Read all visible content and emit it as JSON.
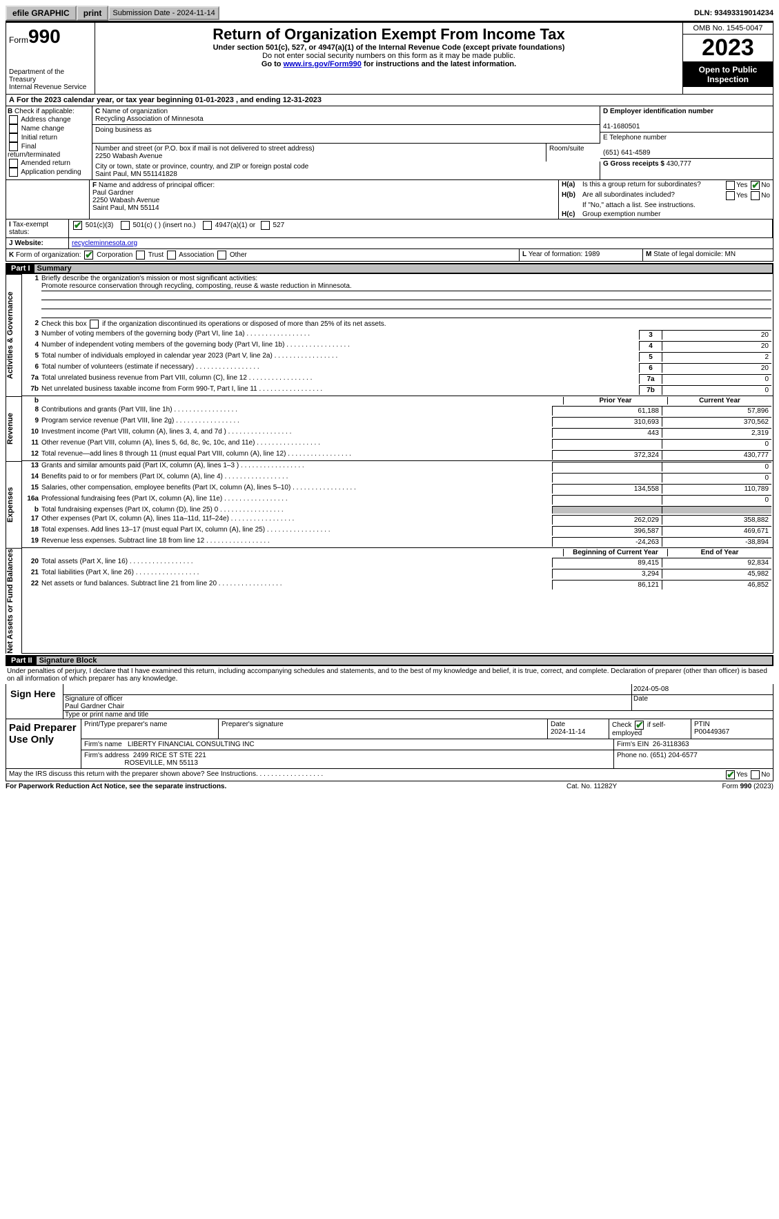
{
  "header": {
    "efile": "efile GRAPHIC print",
    "efile_btn": "efile GRAPHIC",
    "print_btn": "print",
    "submission_label": "Submission Date - 2024-11-14",
    "dln": "DLN: 93493319014234"
  },
  "formhdr": {
    "form_word": "Form",
    "form_no": "990",
    "dept": "Department of the Treasury",
    "irs": "Internal Revenue Service",
    "title": "Return of Organization Exempt From Income Tax",
    "sub": "Under section 501(c), 527, or 4947(a)(1) of the Internal Revenue Code (except private foundations)",
    "sub2": "Do not enter social security numbers on this form as it may be made public.",
    "goto_pre": "Go to ",
    "goto_link": "www.irs.gov/Form990",
    "goto_post": " for instructions and the latest information.",
    "omb": "OMB No. 1545-0047",
    "year": "2023",
    "open": "Open to Public Inspection"
  },
  "A": "For the 2023 calendar year, or tax year beginning 01-01-2023   , and ending 12-31-2023",
  "B": {
    "label": "Check if applicable:",
    "items": [
      "Address change",
      "Name change",
      "Initial return",
      "Final return/terminated",
      "Amended return",
      "Application pending"
    ]
  },
  "C": {
    "name_lbl": "Name of organization",
    "name": "Recycling Association of Minnesota",
    "dba_lbl": "Doing business as",
    "addr_lbl": "Number and street (or P.O. box if mail is not delivered to street address)",
    "addr": "2250 Wabash Avenue",
    "room_lbl": "Room/suite",
    "city_lbl": "City or town, state or province, country, and ZIP or foreign postal code",
    "city": "Saint Paul, MN  551141828"
  },
  "D": {
    "lbl": "D Employer identification number",
    "val": "41-1680501"
  },
  "E": {
    "lbl": "E Telephone number",
    "val": "(651) 641-4589"
  },
  "G": {
    "lbl": "G Gross receipts $",
    "val": "430,777"
  },
  "F": {
    "lbl": "Name and address of principal officer:",
    "name": "Paul Gardner",
    "addr1": "2250 Wabash Avenue",
    "addr2": "Saint Paul, MN  55114"
  },
  "H": {
    "a": "Is this a group return for subordinates?",
    "a_yes": "Yes",
    "a_no": "No",
    "a_val": "No",
    "b": "Are all subordinates included?",
    "b_note": "If \"No,\" attach a list. See instructions.",
    "c": "Group exemption number"
  },
  "I": {
    "lbl": "Tax-exempt status:",
    "c3": "501(c)(3)",
    "c": "501(c) (  ) (insert no.)",
    "a": "4947(a)(1) or",
    "s": "527"
  },
  "J": {
    "lbl": "Website:",
    "val": "recycleminnesota.org"
  },
  "K": {
    "lbl": "Form of organization:",
    "corp": "Corporation",
    "trust": "Trust",
    "assoc": "Association",
    "other": "Other"
  },
  "L": {
    "lbl": "Year of formation:",
    "val": "1989"
  },
  "M": {
    "lbl": "State of legal domicile:",
    "val": "MN"
  },
  "part1": {
    "hdr": "Part I",
    "title": "Summary"
  },
  "gov": {
    "label": "Activities & Governance",
    "l1": "Briefly describe the organization's mission or most significant activities:",
    "l1v": "Promote resource conservation through recycling, composting, reuse & waste reduction in Minnesota.",
    "l2": "Check this box    if the organization discontinued its operations or disposed of more than 25% of its net assets.",
    "rows": [
      {
        "n": "3",
        "t": "Number of voting members of the governing body (Part VI, line 1a)",
        "v": "20"
      },
      {
        "n": "4",
        "t": "Number of independent voting members of the governing body (Part VI, line 1b)",
        "v": "20"
      },
      {
        "n": "5",
        "t": "Total number of individuals employed in calendar year 2023 (Part V, line 2a)",
        "v": "2"
      },
      {
        "n": "6",
        "t": "Total number of volunteers (estimate if necessary)",
        "v": "20"
      },
      {
        "n": "7a",
        "t": "Total unrelated business revenue from Part VIII, column (C), line 12",
        "v": "0"
      },
      {
        "n": "7b",
        "t": "Net unrelated business taxable income from Form 990-T, Part I, line 11",
        "v": "0"
      }
    ]
  },
  "rev": {
    "label": "Revenue",
    "hdr_prior": "Prior Year",
    "hdr_curr": "Current Year",
    "rows": [
      {
        "n": "8",
        "t": "Contributions and grants (Part VIII, line 1h)",
        "p": "61,188",
        "c": "57,896"
      },
      {
        "n": "9",
        "t": "Program service revenue (Part VIII, line 2g)",
        "p": "310,693",
        "c": "370,562"
      },
      {
        "n": "10",
        "t": "Investment income (Part VIII, column (A), lines 3, 4, and 7d )",
        "p": "443",
        "c": "2,319"
      },
      {
        "n": "11",
        "t": "Other revenue (Part VIII, column (A), lines 5, 6d, 8c, 9c, 10c, and 11e)",
        "p": "",
        "c": "0"
      },
      {
        "n": "12",
        "t": "Total revenue—add lines 8 through 11 (must equal Part VIII, column (A), line 12)",
        "p": "372,324",
        "c": "430,777"
      }
    ]
  },
  "exp": {
    "label": "Expenses",
    "rows": [
      {
        "n": "13",
        "t": "Grants and similar amounts paid (Part IX, column (A), lines 1–3 )",
        "p": "",
        "c": "0"
      },
      {
        "n": "14",
        "t": "Benefits paid to or for members (Part IX, column (A), line 4)",
        "p": "",
        "c": "0"
      },
      {
        "n": "15",
        "t": "Salaries, other compensation, employee benefits (Part IX, column (A), lines 5–10)",
        "p": "134,558",
        "c": "110,789"
      },
      {
        "n": "16a",
        "t": "Professional fundraising fees (Part IX, column (A), line 11e)",
        "p": "",
        "c": "0"
      },
      {
        "n": "b",
        "t": "Total fundraising expenses (Part IX, column (D), line 25) 0",
        "p": "sh",
        "c": "sh"
      },
      {
        "n": "17",
        "t": "Other expenses (Part IX, column (A), lines 11a–11d, 11f–24e)",
        "p": "262,029",
        "c": "358,882"
      },
      {
        "n": "18",
        "t": "Total expenses. Add lines 13–17 (must equal Part IX, column (A), line 25)",
        "p": "396,587",
        "c": "469,671"
      },
      {
        "n": "19",
        "t": "Revenue less expenses. Subtract line 18 from line 12",
        "p": "-24,263",
        "c": "-38,894"
      }
    ]
  },
  "net": {
    "label": "Net Assets or Fund Balances",
    "hdr_b": "Beginning of Current Year",
    "hdr_e": "End of Year",
    "rows": [
      {
        "n": "20",
        "t": "Total assets (Part X, line 16)",
        "p": "89,415",
        "c": "92,834"
      },
      {
        "n": "21",
        "t": "Total liabilities (Part X, line 26)",
        "p": "3,294",
        "c": "45,982"
      },
      {
        "n": "22",
        "t": "Net assets or fund balances. Subtract line 21 from line 20",
        "p": "86,121",
        "c": "46,852"
      }
    ]
  },
  "part2": {
    "hdr": "Part II",
    "title": "Signature Block",
    "decl": "Under penalties of perjury, I declare that I have examined this return, including accompanying schedules and statements, and to the best of my knowledge and belief, it is true, correct, and complete. Declaration of preparer (other than officer) is based on all information of which preparer has any knowledge."
  },
  "sign": {
    "lbl": "Sign Here",
    "sig_lbl": "Signature of officer",
    "date_lbl": "Date",
    "date": "2024-05-08",
    "name": "Paul Gardner Chair",
    "type_lbl": "Type or print name and title"
  },
  "prep": {
    "lbl": "Paid Preparer Use Only",
    "ptname_lbl": "Print/Type preparer's name",
    "psig_lbl": "Preparer's signature",
    "date_lbl": "Date",
    "date": "2024-11-14",
    "check_lbl": "Check        if self-employed",
    "ptin_lbl": "PTIN",
    "ptin": "P00449367",
    "firm_lbl": "Firm's name",
    "firm": "LIBERTY FINANCIAL CONSULTING INC",
    "ein_lbl": "Firm's EIN",
    "ein": "26-3118363",
    "faddr_lbl": "Firm's address",
    "faddr1": "2499 RICE ST STE 221",
    "faddr2": "ROSEVILLE, MN  55113",
    "phone_lbl": "Phone no.",
    "phone": "(651) 204-6577"
  },
  "discuss": "May the IRS discuss this return with the preparer shown above? See Instructions.",
  "foot": {
    "l": "For Paperwork Reduction Act Notice, see the separate instructions.",
    "m": "Cat. No. 11282Y",
    "r": "Form 990 (2023)"
  }
}
